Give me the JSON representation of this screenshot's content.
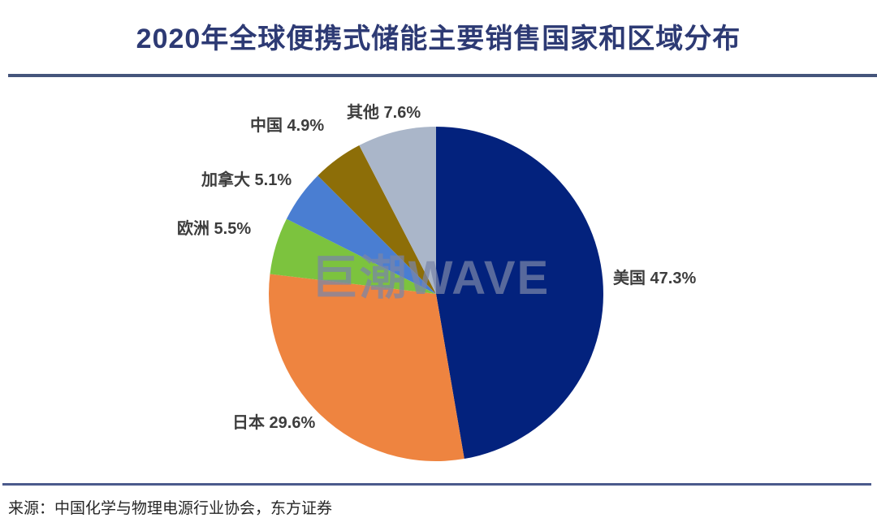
{
  "title": "2020年全球便携式储能主要销售国家和区域分布",
  "watermark": "巨潮WAVE",
  "source": "来源：中国化学与物理电源行业协会，东方证券",
  "chart_data": {
    "type": "pie",
    "title": "2020年全球便携式储能主要销售国家和区域分布",
    "categories": [
      "美国",
      "日本",
      "欧洲",
      "加拿大",
      "中国",
      "其他"
    ],
    "values": [
      47.3,
      29.6,
      5.5,
      5.1,
      4.9,
      7.6
    ],
    "unit": "%",
    "colors": [
      "#03227d",
      "#ee8440",
      "#7cc33e",
      "#4a7ed2",
      "#8d6e08",
      "#aab6c9"
    ],
    "labels": [
      "美国 47.3%",
      "日本 29.6%",
      "欧洲 5.5%",
      "加拿大 5.1%",
      "中国 4.9%",
      "其他 7.6%"
    ],
    "start_angle_deg": 0,
    "direction": "clockwise",
    "legend_position": "none",
    "label_color": "#3d3d3d"
  }
}
